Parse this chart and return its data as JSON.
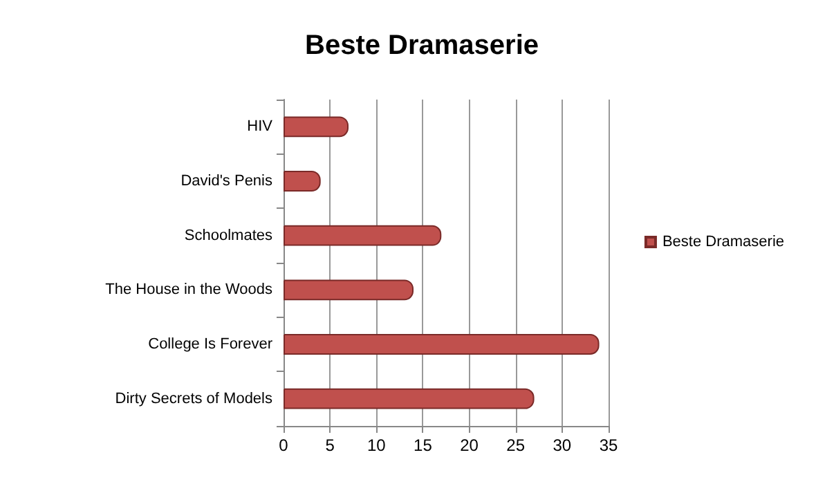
{
  "chart_data": {
    "type": "bar",
    "orientation": "horizontal",
    "title": "Beste Dramaserie",
    "categories": [
      "HIV",
      "David's Penis",
      "Schoolmates",
      "The House in the Woods",
      "College Is Forever",
      "Dirty Secrets of Models"
    ],
    "series": [
      {
        "name": "Beste Dramaserie",
        "color": "#c0504d",
        "values": [
          7,
          4,
          17,
          14,
          34,
          27
        ]
      }
    ],
    "xlim": [
      0,
      35
    ],
    "xticks": [
      0,
      5,
      10,
      15,
      20,
      25,
      30,
      35
    ],
    "grid": "x",
    "legend": "right"
  }
}
